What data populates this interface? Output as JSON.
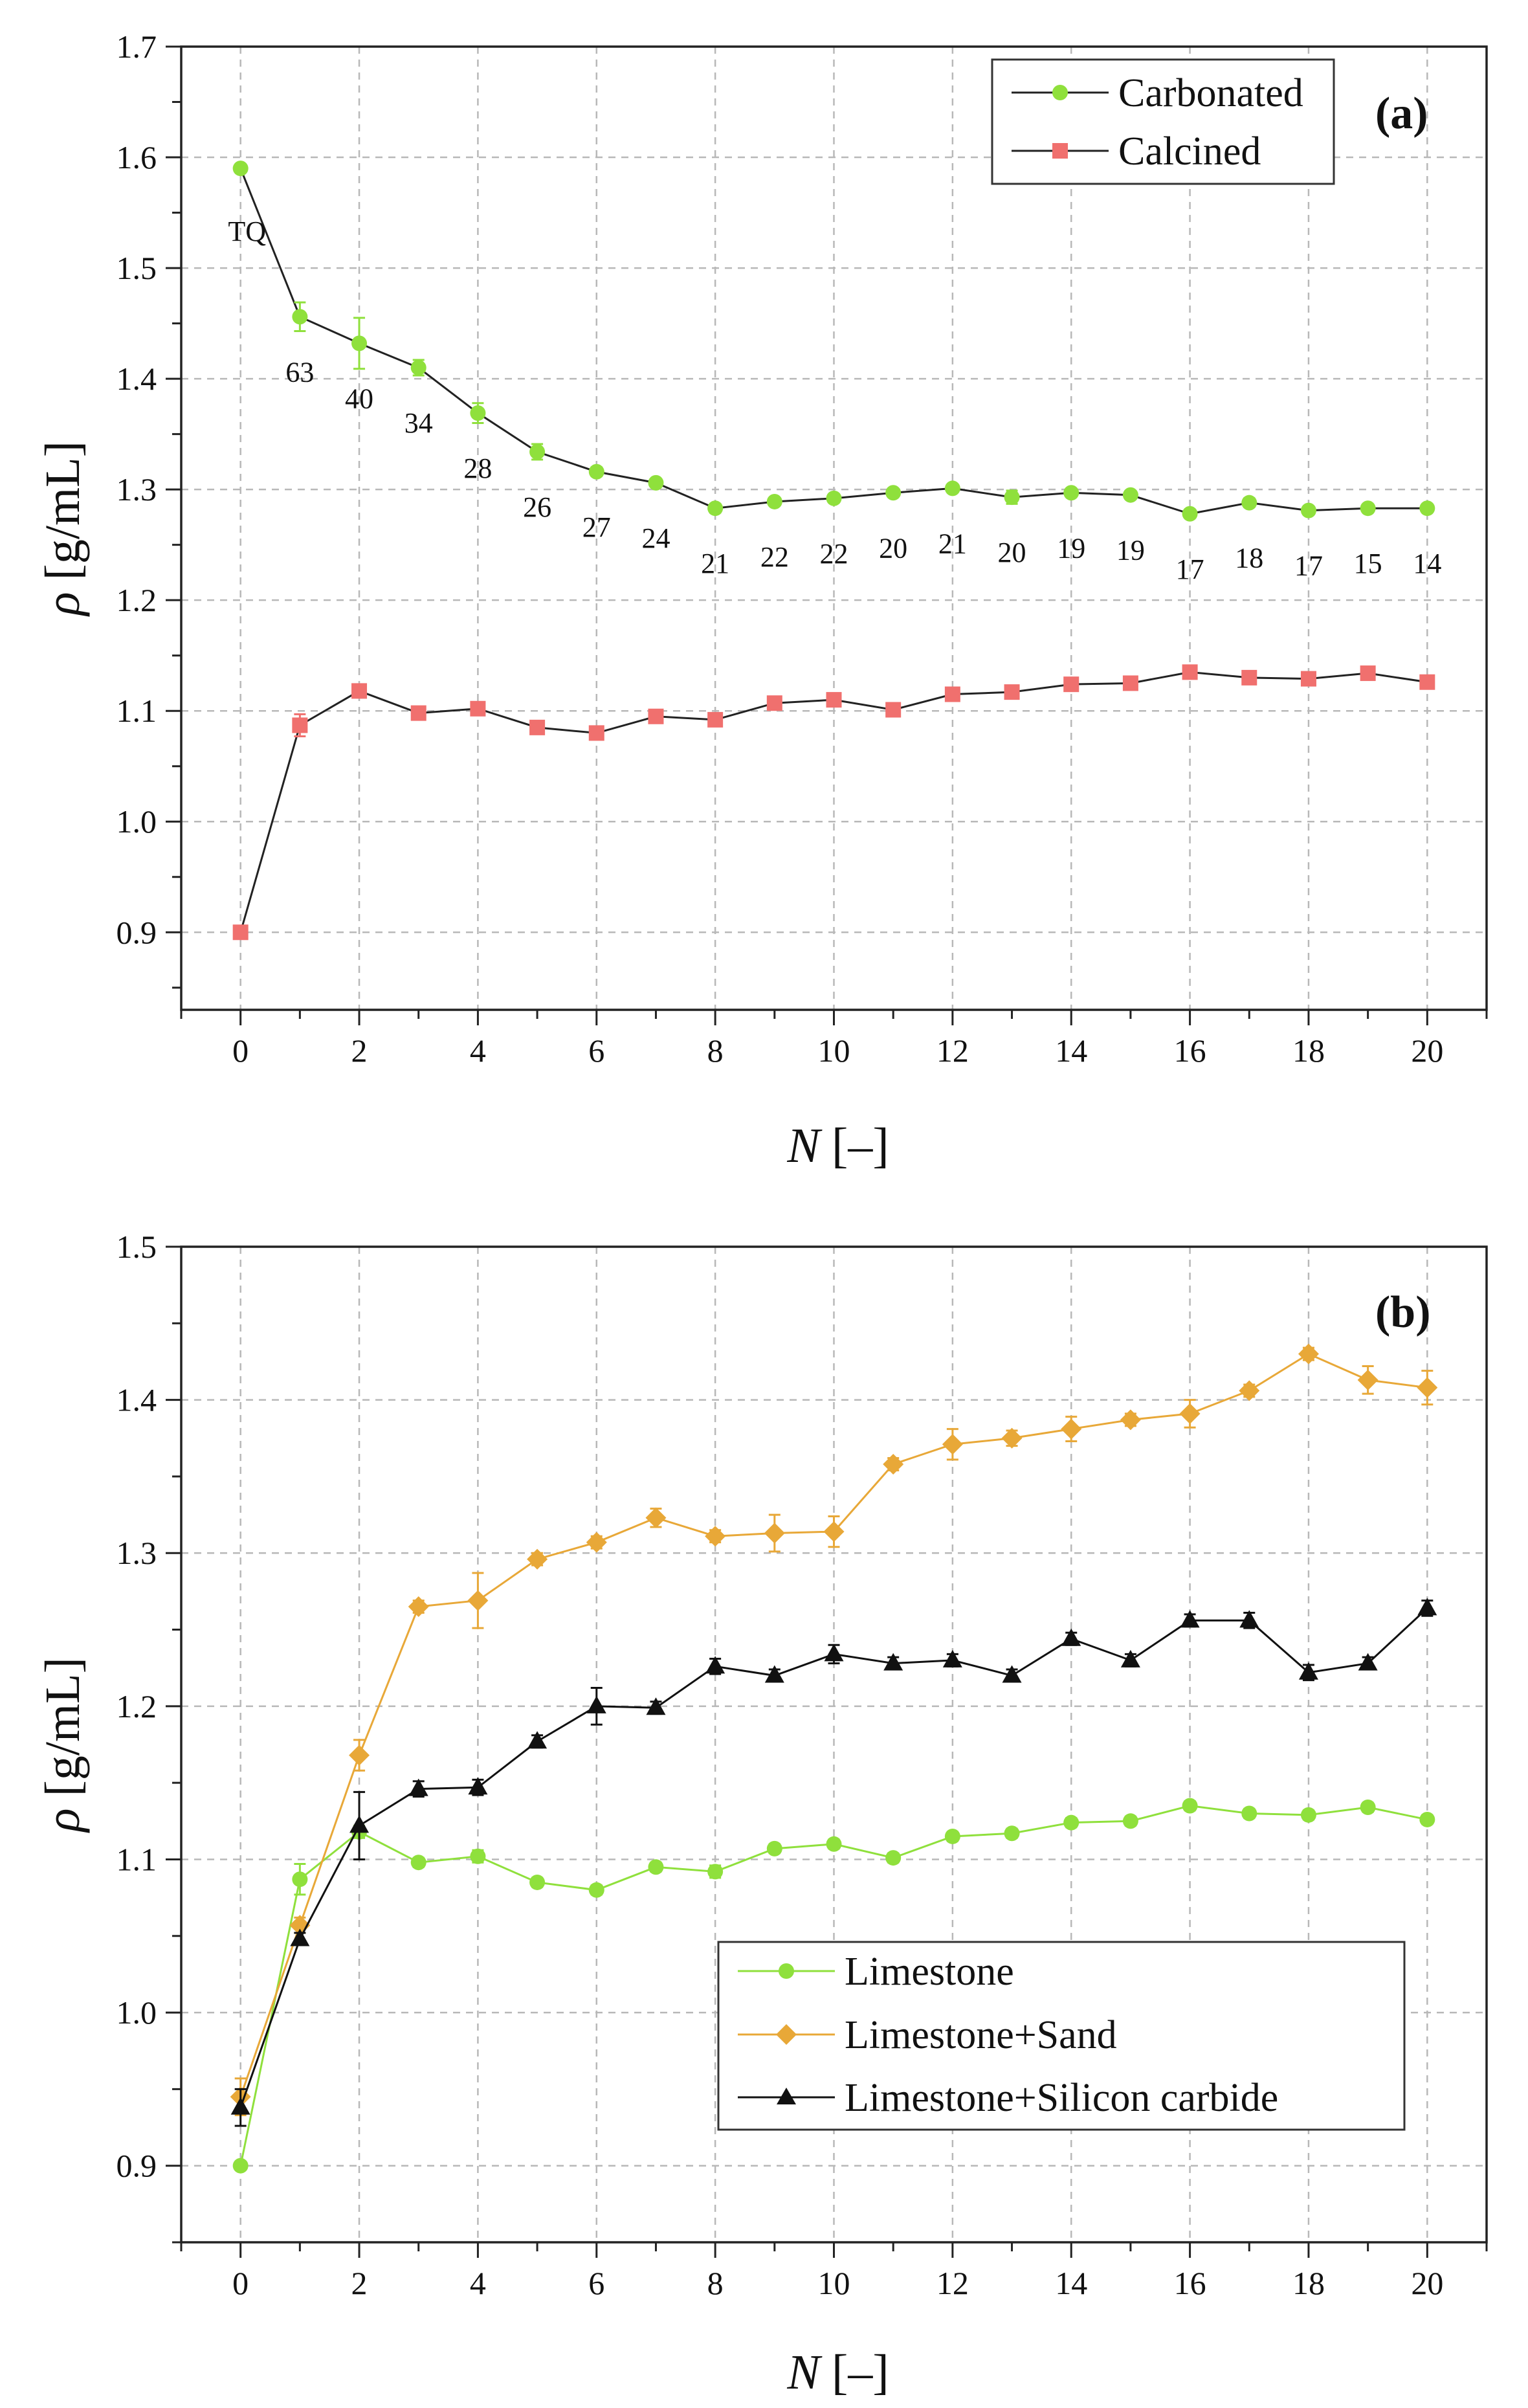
{
  "figure": {
    "panels": [
      "a",
      "b"
    ]
  },
  "chart_data": [
    {
      "type": "line",
      "panel_label": "(a)",
      "xlabel_var": "N",
      "xlabel_unit": "[–]",
      "ylabel_var": "ρ",
      "ylabel_unit": "[g/mL]",
      "xlim": [
        -1,
        21
      ],
      "ylim": [
        0.83,
        1.7
      ],
      "xticks": [
        0,
        2,
        4,
        6,
        8,
        10,
        12,
        14,
        16,
        18,
        20
      ],
      "yticks": [
        0.9,
        1.0,
        1.1,
        1.2,
        1.3,
        1.4,
        1.5,
        1.6,
        1.7
      ],
      "ytick_labels": [
        "0.9",
        "1.0",
        "1.1",
        "1.2",
        "1.3",
        "1.4",
        "1.5",
        "1.6",
        "1.7"
      ],
      "grid": true,
      "legend_position": "top-right",
      "x": [
        0,
        1,
        2,
        3,
        4,
        5,
        6,
        7,
        8,
        9,
        10,
        11,
        12,
        13,
        14,
        15,
        16,
        17,
        18,
        19,
        20
      ],
      "series": [
        {
          "name": "Carbonated",
          "color": "#8fe03c",
          "marker": "circle",
          "values": [
            1.59,
            1.456,
            1.432,
            1.41,
            1.369,
            1.334,
            1.316,
            1.306,
            1.283,
            1.289,
            1.292,
            1.297,
            1.301,
            1.293,
            1.297,
            1.295,
            1.278,
            1.288,
            1.281,
            1.283,
            1.283
          ],
          "errors": [
            0,
            0.013,
            0.023,
            0.007,
            0.009,
            0.007,
            0.004,
            0.003,
            0.004,
            0.003,
            0.004,
            0.003,
            0.003,
            0.006,
            0.003,
            0.003,
            0.003,
            0.004,
            0.003,
            0.003,
            0.003
          ]
        },
        {
          "name": "Calcined",
          "color": "#f0706e",
          "marker": "square",
          "values": [
            0.9,
            1.087,
            1.118,
            1.098,
            1.102,
            1.085,
            1.08,
            1.095,
            1.092,
            1.107,
            1.11,
            1.101,
            1.115,
            1.117,
            1.124,
            1.125,
            1.135,
            1.13,
            1.129,
            1.134,
            1.126
          ],
          "errors": [
            0,
            0.01,
            0.004,
            0.003,
            0.004,
            0.003,
            0.003,
            0.003,
            0.004,
            0.003,
            0.003,
            0.003,
            0.003,
            0.003,
            0.003,
            0.003,
            0.003,
            0.003,
            0.003,
            0.003,
            0.003
          ]
        }
      ],
      "annotations": [
        {
          "text": "TQ",
          "x": 0,
          "y": 1.59
        },
        {
          "text": "63",
          "x": 1,
          "y": 1.456
        },
        {
          "text": "40",
          "x": 2,
          "y": 1.432
        },
        {
          "text": "34",
          "x": 3,
          "y": 1.41
        },
        {
          "text": "28",
          "x": 4,
          "y": 1.369
        },
        {
          "text": "26",
          "x": 5,
          "y": 1.334
        },
        {
          "text": "27",
          "x": 6,
          "y": 1.316
        },
        {
          "text": "24",
          "x": 7,
          "y": 1.306
        },
        {
          "text": "21",
          "x": 8,
          "y": 1.283
        },
        {
          "text": "22",
          "x": 9,
          "y": 1.289
        },
        {
          "text": "22",
          "x": 10,
          "y": 1.292
        },
        {
          "text": "20",
          "x": 11,
          "y": 1.297
        },
        {
          "text": "21",
          "x": 12,
          "y": 1.301
        },
        {
          "text": "20",
          "x": 13,
          "y": 1.293
        },
        {
          "text": "19",
          "x": 14,
          "y": 1.297
        },
        {
          "text": "19",
          "x": 15,
          "y": 1.295
        },
        {
          "text": "17",
          "x": 16,
          "y": 1.278
        },
        {
          "text": "18",
          "x": 17,
          "y": 1.288
        },
        {
          "text": "17",
          "x": 18,
          "y": 1.281
        },
        {
          "text": "15",
          "x": 19,
          "y": 1.283
        },
        {
          "text": "14",
          "x": 20,
          "y": 1.283
        }
      ]
    },
    {
      "type": "line",
      "panel_label": "(b)",
      "xlabel_var": "N",
      "xlabel_unit": "[–]",
      "ylabel_var": "ρ",
      "ylabel_unit": "[g/mL]",
      "xlim": [
        -1,
        21
      ],
      "ylim": [
        0.85,
        1.5
      ],
      "xticks": [
        0,
        2,
        4,
        6,
        8,
        10,
        12,
        14,
        16,
        18,
        20
      ],
      "yticks": [
        0.9,
        1.0,
        1.1,
        1.2,
        1.3,
        1.4,
        1.5
      ],
      "ytick_labels": [
        "0.9",
        "1.0",
        "1.1",
        "1.2",
        "1.3",
        "1.4",
        "1.5"
      ],
      "grid": true,
      "legend_position": "bottom-right",
      "x": [
        0,
        1,
        2,
        3,
        4,
        5,
        6,
        7,
        8,
        9,
        10,
        11,
        12,
        13,
        14,
        15,
        16,
        17,
        18,
        19,
        20
      ],
      "series": [
        {
          "name": "Limestone",
          "color": "#8fe03c",
          "marker": "circle",
          "values": [
            0.9,
            1.087,
            1.118,
            1.098,
            1.102,
            1.085,
            1.08,
            1.095,
            1.092,
            1.107,
            1.11,
            1.101,
            1.115,
            1.117,
            1.124,
            1.125,
            1.135,
            1.13,
            1.129,
            1.134,
            1.126
          ],
          "errors": [
            0,
            0.01,
            0.004,
            0.003,
            0.004,
            0.003,
            0.003,
            0.003,
            0.004,
            0.003,
            0.003,
            0.003,
            0.003,
            0.003,
            0.003,
            0.003,
            0.003,
            0.003,
            0.003,
            0.003,
            0.003
          ]
        },
        {
          "name": "Limestone+Sand",
          "color": "#e8a838",
          "marker": "diamond",
          "values": [
            0.945,
            1.057,
            1.168,
            1.265,
            1.269,
            1.296,
            1.307,
            1.323,
            1.311,
            1.313,
            1.314,
            1.358,
            1.371,
            1.375,
            1.381,
            1.387,
            1.391,
            1.406,
            1.43,
            1.413,
            1.408
          ],
          "errors": [
            0.012,
            0.005,
            0.01,
            0.004,
            0.018,
            0.004,
            0.004,
            0.006,
            0.004,
            0.012,
            0.01,
            0.004,
            0.01,
            0.005,
            0.008,
            0.004,
            0.009,
            0.004,
            0.004,
            0.009,
            0.011
          ]
        },
        {
          "name": "Limestone+Silicon carbide",
          "color": "#111111",
          "marker": "triangle",
          "values": [
            0.938,
            1.048,
            1.122,
            1.146,
            1.147,
            1.177,
            1.2,
            1.199,
            1.226,
            1.22,
            1.234,
            1.228,
            1.23,
            1.22,
            1.244,
            1.23,
            1.256,
            1.256,
            1.222,
            1.228,
            1.264
          ],
          "errors": [
            0.012,
            0.004,
            0.022,
            0.005,
            0.005,
            0.004,
            0.012,
            0.004,
            0.005,
            0.004,
            0.006,
            0.004,
            0.004,
            0.004,
            0.004,
            0.004,
            0.004,
            0.005,
            0.005,
            0.004,
            0.005
          ]
        }
      ]
    }
  ]
}
